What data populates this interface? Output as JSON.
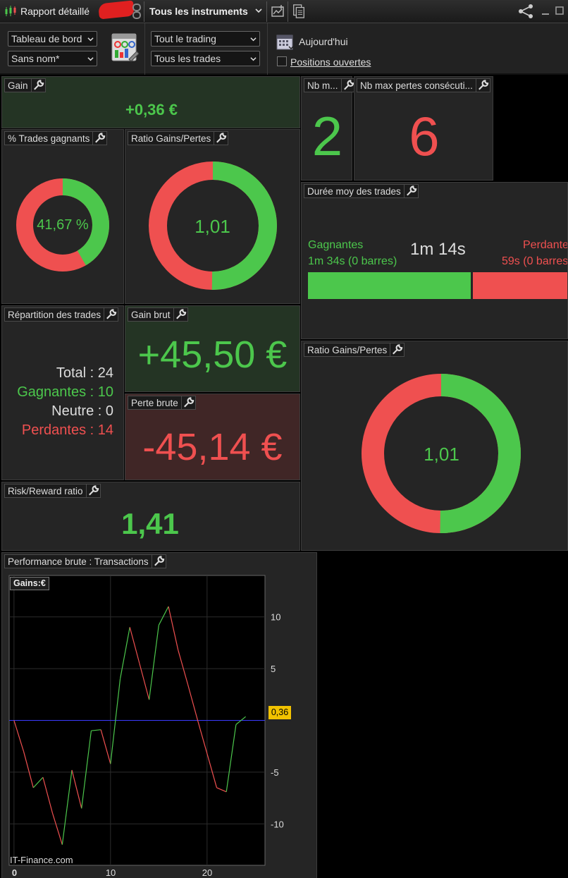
{
  "topbar": {
    "title": "Rapport détaillé",
    "instruments": "Tous les instruments"
  },
  "toolbar": {
    "dashboard_select": "Tableau de bord",
    "name_select": "Sans nom*",
    "trading_select": "Tout le trading",
    "trades_select": "Tous les trades",
    "date_label": "Aujourd'hui",
    "open_positions_label": "Positions ouvertes"
  },
  "panels": {
    "gain": {
      "title": "Gain",
      "value": "+0,36 €"
    },
    "nb_m": {
      "title": "Nb m...",
      "value": "2"
    },
    "nb_max_pertes": {
      "title": "Nb max pertes consécuti...",
      "value": "6"
    },
    "pct_trades_gagnants": {
      "title": "% Trades gagnants",
      "value": "41,67 %",
      "win_fraction": 0.4167
    },
    "ratio_gains_pertes_1": {
      "title": "Ratio Gains/Pertes",
      "value": "1,01",
      "win_fraction": 0.502
    },
    "duree_moy": {
      "title": "Durée moy des trades",
      "overall": "1m 14s",
      "win_label": "Gagnantes",
      "win_value": "1m 34s (0 barres)",
      "loss_label": "Perdantes",
      "loss_value": "59s (0 barres)"
    },
    "repartition": {
      "title": "Répartition des trades",
      "total": "Total : 24",
      "gagnantes": "Gagnantes : 10",
      "neutre": "Neutre : 0",
      "perdantes": "Perdantes : 14"
    },
    "gain_brut": {
      "title": "Gain brut",
      "value": "+45,50 €"
    },
    "perte_brute": {
      "title": "Perte brute",
      "value": "-45,14 €"
    },
    "ratio_gains_pertes_2": {
      "title": "Ratio Gains/Pertes",
      "value": "1,01",
      "win_fraction": 0.502
    },
    "risk_reward": {
      "title": "Risk/Reward ratio",
      "value": "1,41"
    },
    "performance": {
      "title": "Performance brute : Transactions",
      "legend": "Gains:€",
      "watermark": "IT-Finance.com",
      "current_value": "0,36"
    }
  },
  "colors": {
    "green": "#4cc74c",
    "red": "#ef5050",
    "accent_line": "#3a3aff",
    "badge": "#f2c200"
  },
  "chart_data": {
    "type": "line",
    "title": "Performance brute : Transactions",
    "xlabel": "",
    "ylabel": "Gains:€",
    "x": [
      0,
      1,
      2,
      3,
      4,
      5,
      6,
      7,
      8,
      9,
      10,
      11,
      12,
      13,
      14,
      15,
      16,
      17,
      18,
      19,
      20,
      21,
      22,
      23,
      24
    ],
    "y": [
      0,
      -3,
      -6.5,
      -5.5,
      -9,
      -12,
      -4.8,
      -8.5,
      -1,
      -0.9,
      -4.2,
      4,
      9,
      5.5,
      2,
      9.2,
      11,
      6.8,
      3.5,
      0.1,
      -3.2,
      -6.5,
      -6.9,
      -0.4,
      0.36
    ],
    "xlim": [
      -0.5,
      26
    ],
    "ylim": [
      -14,
      14
    ],
    "xticks": [
      0,
      10,
      20
    ],
    "yticks": [
      10,
      5,
      -5,
      -10
    ],
    "reference_line": 0,
    "up_color": "#4cc74c",
    "down_color": "#ef5050",
    "grid": true
  }
}
